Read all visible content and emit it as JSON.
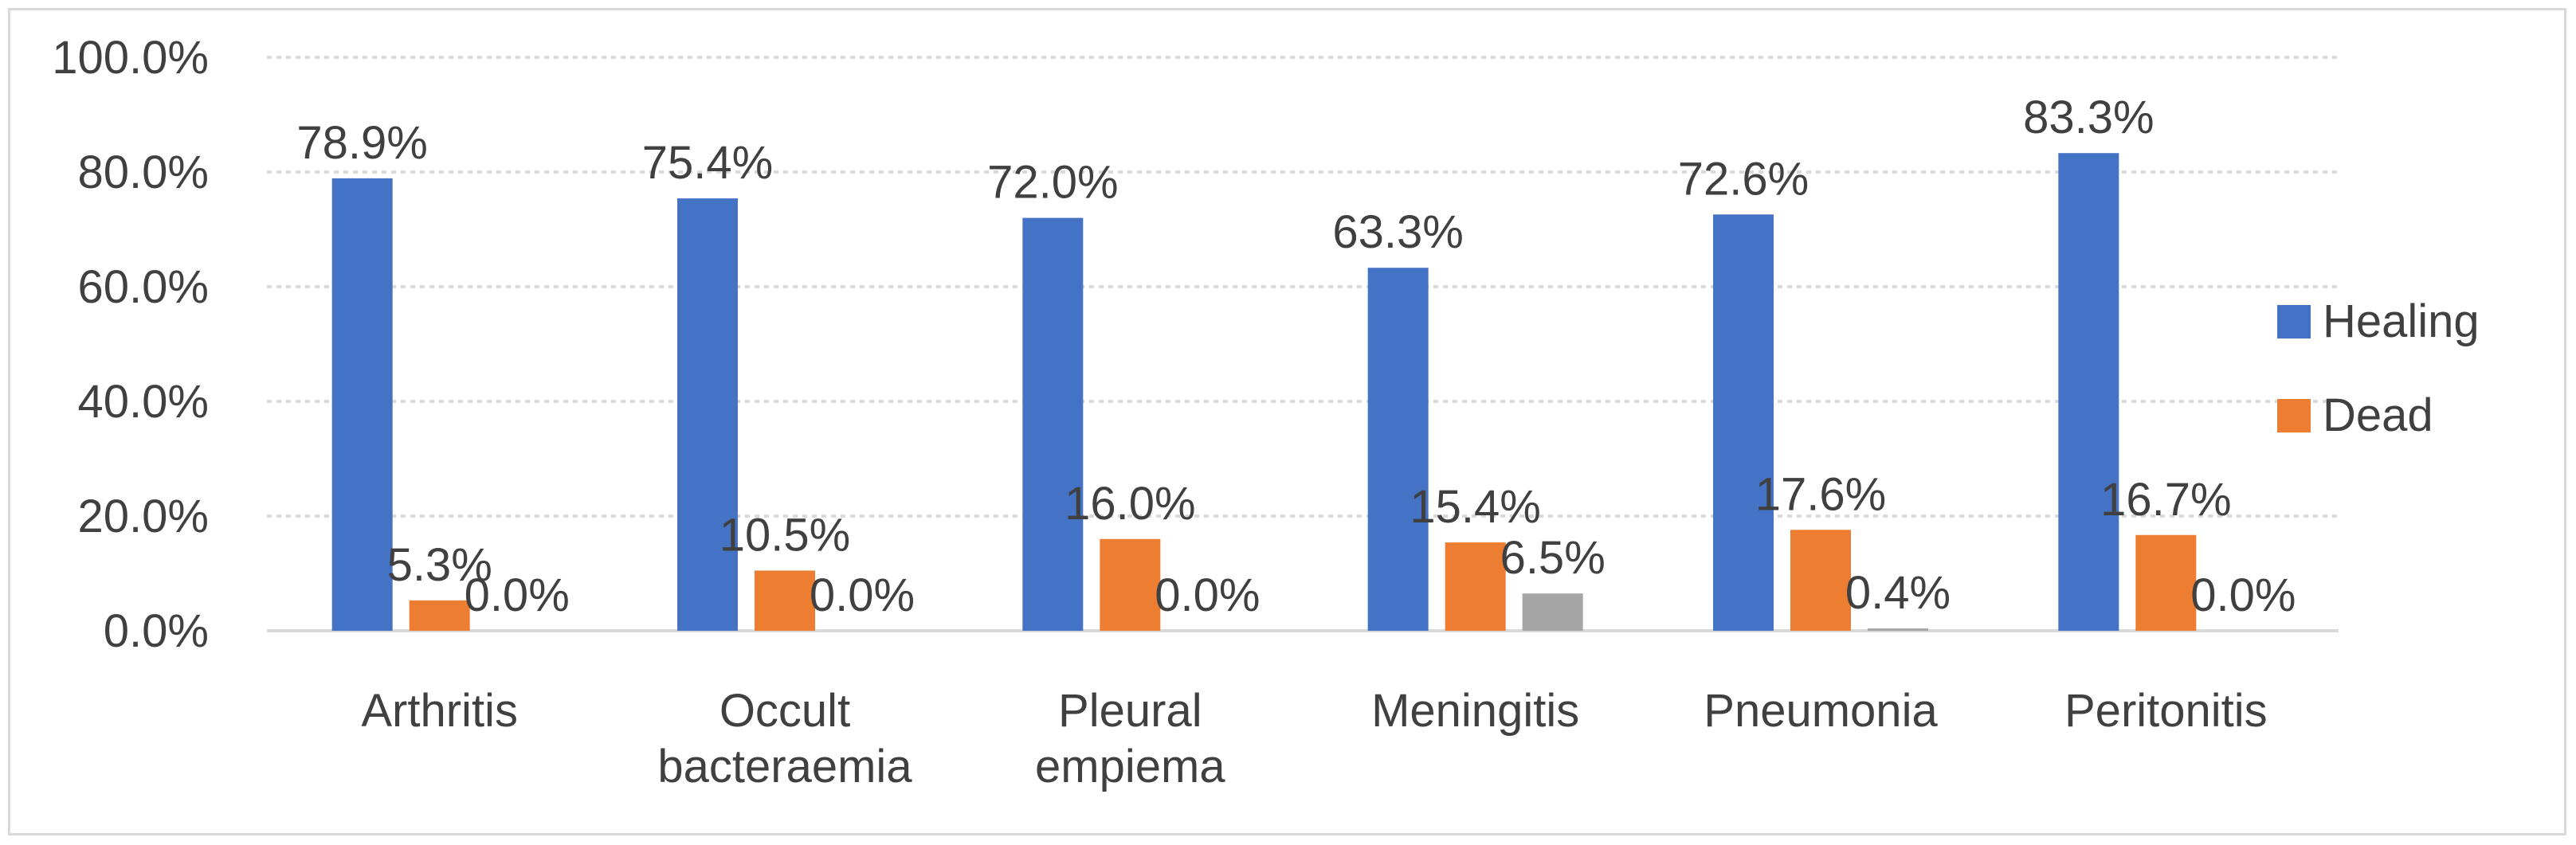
{
  "chart_data": {
    "type": "bar",
    "title": "",
    "xlabel": "",
    "ylabel": "",
    "ylim": [
      0,
      100
    ],
    "yticks": [
      "0.0%",
      "20.0%",
      "40.0%",
      "60.0%",
      "80.0%",
      "100.0%"
    ],
    "ytick_values": [
      0,
      20,
      40,
      60,
      80,
      100
    ],
    "grid": true,
    "legend_position": "right",
    "categories": [
      [
        "Arthritis"
      ],
      [
        "Occult",
        "bacteraemia"
      ],
      [
        "Pleural",
        "empiema"
      ],
      [
        "Meningitis"
      ],
      [
        "Pneumonia"
      ],
      [
        "Peritonitis"
      ]
    ],
    "series": [
      {
        "name": "Healing",
        "color": "#4472c4",
        "in_legend": true,
        "values": [
          78.9,
          75.4,
          72.0,
          63.3,
          72.6,
          83.3
        ],
        "labels": [
          "78.9%",
          "75.4%",
          "72.0%",
          "63.3%",
          "72.6%",
          "83.3%"
        ]
      },
      {
        "name": "Dead",
        "color": "#ed7d31",
        "in_legend": true,
        "values": [
          5.3,
          10.5,
          16.0,
          15.4,
          17.6,
          16.7
        ],
        "labels": [
          "5.3%",
          "10.5%",
          "16.0%",
          "15.4%",
          "17.6%",
          "16.7%"
        ]
      },
      {
        "name": "",
        "color": "#a5a5a5",
        "in_legend": false,
        "values": [
          0.0,
          0.0,
          0.0,
          6.5,
          0.4,
          0.0
        ],
        "labels": [
          "0.0%",
          "0.0%",
          "0.0%",
          "6.5%",
          "0.4%",
          "0.0%"
        ]
      }
    ]
  }
}
